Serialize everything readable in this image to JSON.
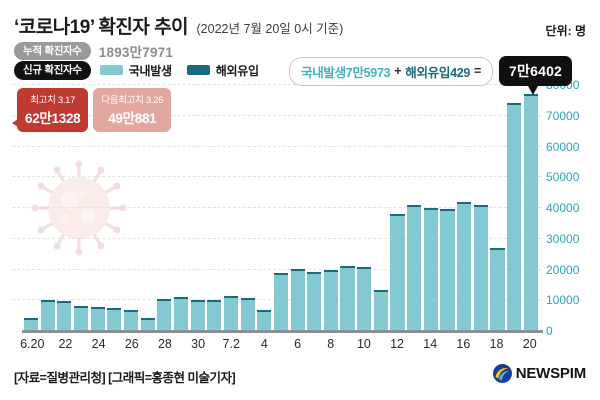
{
  "header": {
    "title": "‘코로나19’ 확진자 추이",
    "subtitle": "(2022년 7월 20일 0시 기준)",
    "unit_label": "단위: 명"
  },
  "stats": {
    "cumulative_label": "누적 확진자수",
    "cumulative_value": "1893만7971",
    "new_label": "신규 확진자수"
  },
  "legend": {
    "domestic": "국내발생",
    "overseas": "해외유입"
  },
  "annotation": {
    "domestic_text": "국내발생7만5973",
    "plus": "+",
    "overseas_text": "해외유입429",
    "equals": "=",
    "total_badge": "7만6402"
  },
  "peaks": {
    "first": {
      "label": "최고치 3.17",
      "value": "62만1328"
    },
    "second": {
      "label": "다음최고치 3.26",
      "value": "49만881"
    }
  },
  "footer": {
    "credit": "[자료=질병관리청] [그래픽=홍종현 미술기자]",
    "logo_text": "NEWSPIM"
  },
  "colors": {
    "bar_domestic": "#82c9d4",
    "bar_overseas": "#186b7b",
    "axis_label": "#2aa6b4",
    "peak_badge_primary": "#bf3a31",
    "peak_badge_secondary": "#e2a89f",
    "cumulative_pill": "#9a9a9a",
    "new_pill": "#121212",
    "total_badge": "#101010"
  },
  "chart_data": {
    "type": "bar",
    "stacked": true,
    "series_names": [
      "국내발생",
      "해외유입"
    ],
    "categories": [
      "6.20",
      "6.21",
      "6.22",
      "6.23",
      "6.24",
      "6.25",
      "6.26",
      "6.27",
      "6.28",
      "6.29",
      "6.30",
      "7.1",
      "7.2",
      "7.3",
      "7.4",
      "7.5",
      "7.6",
      "7.7",
      "7.8",
      "7.9",
      "7.10",
      "7.11",
      "7.12",
      "7.13",
      "7.14",
      "7.15",
      "7.16",
      "7.17",
      "7.18",
      "7.19",
      "7.20"
    ],
    "values": [
      3538,
      9303,
      8992,
      7494,
      7227,
      6790,
      6246,
      3423,
      9896,
      10463,
      9595,
      9528,
      10715,
      10059,
      6253,
      18147,
      19371,
      18511,
      19323,
      20410,
      20271,
      12693,
      37360,
      40266,
      39196,
      38882,
      41310,
      40342,
      26299,
      73582,
      76402
    ],
    "labeled_total": {
      "date": "7.20",
      "domestic": 75973,
      "overseas": 429,
      "total": 76402
    },
    "tick_labels": [
      "6.20",
      "22",
      "24",
      "26",
      "28",
      "30",
      "7.2",
      "4",
      "6",
      "8",
      "10",
      "12",
      "14",
      "16",
      "18",
      "20"
    ],
    "ylim": [
      0,
      80000
    ],
    "ytick_interval": 10000,
    "legend_position": "top",
    "grid": "horizontal-dashed"
  }
}
